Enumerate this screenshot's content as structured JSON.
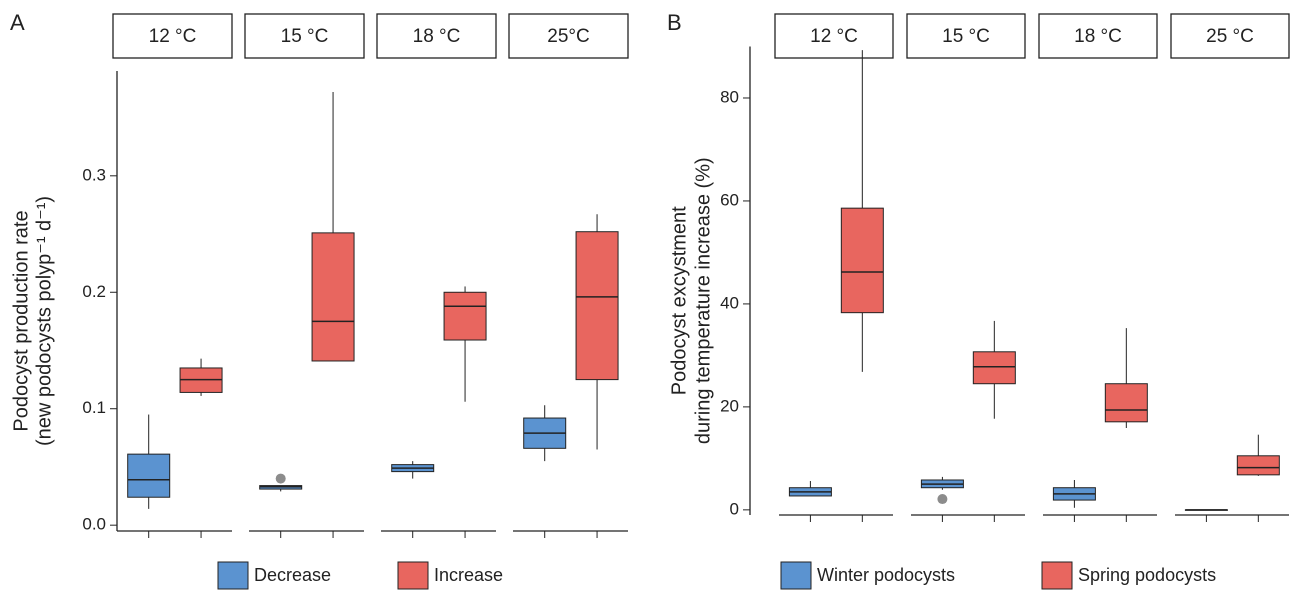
{
  "chart_data": [
    {
      "type": "box",
      "panel": "A",
      "ylabel": [
        "Podocyst production rate",
        "(new podocysts polyp⁻¹ d⁻¹)"
      ],
      "facets": [
        "12 °C",
        "15 °C",
        "18 °C",
        "25°C"
      ],
      "ylim": [
        -0.005,
        0.39
      ],
      "yticks": [
        {
          "value": 0,
          "label": "0.0"
        },
        0.1,
        0.2,
        0.3
      ],
      "series": [
        {
          "name": "Decrease",
          "color": "#5b93d0",
          "values": [
            {
              "min": 0.014,
              "q1": 0.024,
              "median": 0.039,
              "q3": 0.061,
              "max": 0.095
            },
            {
              "min": 0.029,
              "q1": 0.031,
              "median": 0.033,
              "q3": 0.034,
              "max": 0.034,
              "outliers": [
                0.04
              ]
            },
            {
              "min": 0.04,
              "q1": 0.046,
              "median": 0.049,
              "q3": 0.052,
              "max": 0.055
            },
            {
              "min": 0.055,
              "q1": 0.066,
              "median": 0.079,
              "q3": 0.092,
              "max": 0.103
            }
          ]
        },
        {
          "name": "Increase",
          "color": "#e8665f",
          "values": [
            {
              "min": 0.111,
              "q1": 0.114,
              "median": 0.125,
              "q3": 0.135,
              "max": 0.143
            },
            {
              "min": 0.141,
              "q1": 0.141,
              "median": 0.175,
              "q3": 0.251,
              "max": 0.372
            },
            {
              "min": 0.106,
              "q1": 0.159,
              "median": 0.188,
              "q3": 0.2,
              "max": 0.205
            },
            {
              "min": 0.065,
              "q1": 0.125,
              "median": 0.196,
              "q3": 0.252,
              "max": 0.267
            }
          ]
        }
      ]
    },
    {
      "type": "box",
      "panel": "B",
      "ylabel": [
        "Podocyst excystment",
        "during temperature increase (%)"
      ],
      "facets": [
        "12 °C",
        "15 °C",
        "18 °C",
        "25 °C"
      ],
      "ylim": [
        -1,
        90
      ],
      "yticks": [
        0,
        20,
        40,
        60,
        80
      ],
      "series": [
        {
          "name": "Winter podocysts",
          "color": "#5b93d0",
          "values": [
            {
              "min": 2.7,
              "q1": 2.7,
              "median": 3.5,
              "q3": 4.3,
              "max": 5.6
            },
            {
              "min": 3.9,
              "q1": 4.3,
              "median": 5.0,
              "q3": 5.8,
              "max": 6.4,
              "outliers": [
                2.1
              ]
            },
            {
              "min": 0.4,
              "q1": 1.9,
              "median": 3.1,
              "q3": 4.3,
              "max": 5.8
            },
            {
              "min": 0,
              "q1": 0,
              "median": 0,
              "q3": 0,
              "max": 0
            }
          ]
        },
        {
          "name": "Spring podocysts",
          "color": "#e8665f",
          "values": [
            {
              "min": 26.8,
              "q1": 38.3,
              "median": 46.2,
              "q3": 58.6,
              "max": 89.3
            },
            {
              "min": 17.7,
              "q1": 24.5,
              "median": 27.8,
              "q3": 30.7,
              "max": 36.7
            },
            {
              "min": 15.9,
              "q1": 17.1,
              "median": 19.4,
              "q3": 24.5,
              "max": 35.3
            },
            {
              "min": 6.6,
              "q1": 6.8,
              "median": 8.2,
              "q3": 10.5,
              "max": 14.6
            }
          ]
        }
      ]
    }
  ]
}
